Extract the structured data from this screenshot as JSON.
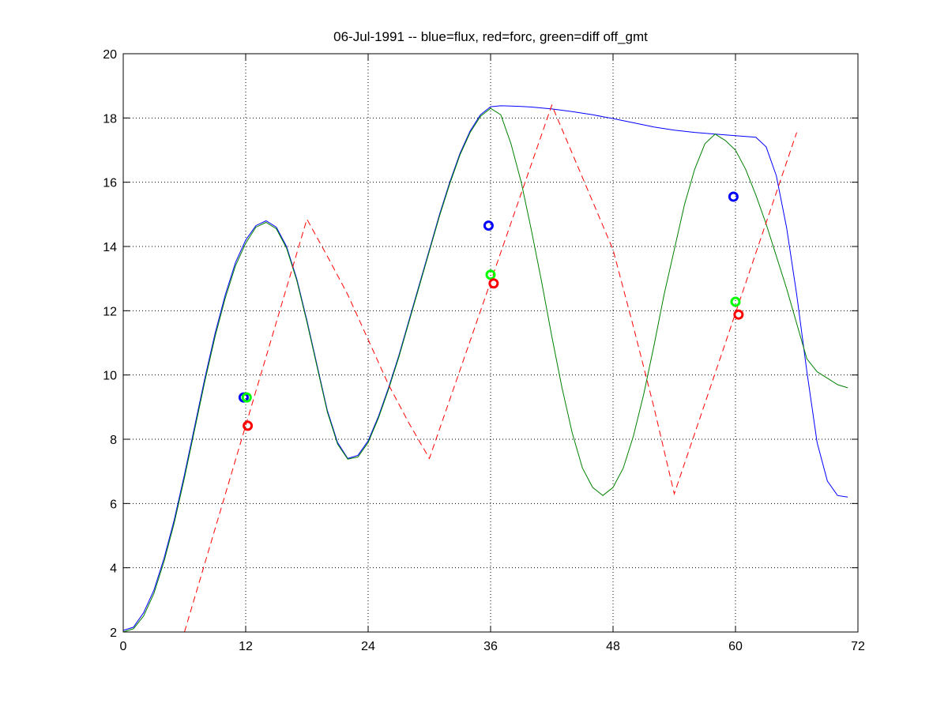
{
  "chart_data": {
    "type": "line",
    "title": "06-Jul-1991 -- blue=flux, red=forc, green=diff off_gmt",
    "xlabel": "",
    "ylabel": "",
    "xlim": [
      0,
      72
    ],
    "ylim": [
      2,
      20
    ],
    "xticks": [
      0,
      12,
      24,
      36,
      48,
      60,
      72
    ],
    "yticks": [
      2,
      4,
      6,
      8,
      10,
      12,
      14,
      16,
      18,
      20
    ],
    "grid": true,
    "grid_style": "dotted",
    "colors": {
      "flux": "#0000ff",
      "forc": "#ff0000",
      "diff": "#008000",
      "diff_marker": "#00ff00"
    },
    "series": [
      {
        "key": "flux",
        "color": "#0000ff",
        "style": "solid",
        "x": [
          0,
          1,
          2,
          3,
          4,
          5,
          6,
          7,
          8,
          9,
          10,
          11,
          12,
          13,
          14,
          15,
          16,
          17,
          18,
          19,
          20,
          21,
          22,
          23,
          24,
          25,
          26,
          27,
          28,
          29,
          30,
          31,
          32,
          33,
          34,
          35,
          36,
          37,
          38,
          39,
          40,
          42,
          44,
          46,
          48,
          50,
          52,
          54,
          56,
          58,
          60,
          62,
          63,
          64,
          65,
          66,
          67,
          68,
          69,
          70,
          71
        ],
        "y": [
          2.05,
          2.15,
          2.6,
          3.3,
          4.3,
          5.5,
          6.9,
          8.4,
          9.9,
          11.3,
          12.5,
          13.5,
          14.2,
          14.65,
          14.8,
          14.6,
          14.0,
          13.0,
          11.7,
          10.3,
          8.9,
          7.9,
          7.4,
          7.5,
          7.95,
          8.7,
          9.6,
          10.6,
          11.7,
          12.8,
          13.9,
          15.0,
          16.0,
          16.9,
          17.6,
          18.1,
          18.35,
          18.38,
          18.37,
          18.36,
          18.34,
          18.28,
          18.2,
          18.1,
          17.98,
          17.85,
          17.72,
          17.62,
          17.55,
          17.5,
          17.45,
          17.4,
          17.1,
          16.2,
          14.6,
          12.5,
          10.1,
          7.9,
          6.7,
          6.25,
          6.2
        ]
      },
      {
        "key": "diff",
        "color": "#008000",
        "style": "solid",
        "x": [
          0,
          1,
          2,
          3,
          4,
          5,
          6,
          7,
          8,
          9,
          10,
          11,
          12,
          13,
          14,
          15,
          16,
          17,
          18,
          19,
          20,
          21,
          22,
          23,
          24,
          25,
          26,
          27,
          28,
          29,
          30,
          31,
          32,
          33,
          34,
          35,
          36,
          37,
          38,
          39,
          40,
          41,
          42,
          43,
          44,
          45,
          46,
          47,
          48,
          49,
          50,
          51,
          52,
          53,
          54,
          55,
          56,
          57,
          58,
          59,
          60,
          61,
          62,
          63,
          64,
          65,
          66,
          67,
          68,
          69,
          70,
          71
        ],
        "y": [
          2.0,
          2.1,
          2.5,
          3.2,
          4.2,
          5.4,
          6.8,
          8.3,
          9.8,
          11.2,
          12.4,
          13.4,
          14.1,
          14.6,
          14.75,
          14.55,
          13.95,
          12.95,
          11.65,
          10.25,
          8.85,
          7.85,
          7.38,
          7.45,
          7.9,
          8.65,
          9.55,
          10.55,
          11.65,
          12.75,
          13.85,
          14.95,
          15.95,
          16.85,
          17.55,
          18.05,
          18.3,
          18.1,
          17.2,
          16.0,
          14.5,
          12.9,
          11.2,
          9.6,
          8.2,
          7.1,
          6.5,
          6.25,
          6.5,
          7.1,
          8.1,
          9.4,
          10.9,
          12.5,
          13.9,
          15.3,
          16.4,
          17.2,
          17.5,
          17.3,
          17.0,
          16.4,
          15.6,
          14.7,
          13.7,
          12.7,
          11.6,
          10.5,
          10.1,
          9.9,
          9.7,
          9.6
        ]
      },
      {
        "key": "forc",
        "color": "#ff0000",
        "style": "dashed",
        "x": [
          6,
          18,
          20,
          22,
          24,
          26,
          28,
          30,
          42,
          44,
          46,
          48,
          50,
          52,
          54,
          66
        ],
        "y": [
          2.0,
          14.85,
          13.7,
          12.5,
          11.1,
          9.7,
          8.5,
          7.4,
          18.4,
          16.9,
          15.4,
          13.9,
          11.5,
          9.0,
          6.3,
          17.55
        ]
      }
    ],
    "markers": [
      {
        "key": "flux",
        "color": "#0000ff",
        "x": 11.8,
        "y": 9.3
      },
      {
        "key": "diff",
        "color": "#00ff00",
        "x": 12.1,
        "y": 9.3
      },
      {
        "key": "forc",
        "color": "#ff0000",
        "x": 12.2,
        "y": 8.42
      },
      {
        "key": "flux",
        "color": "#0000ff",
        "x": 35.8,
        "y": 14.65
      },
      {
        "key": "diff",
        "color": "#00ff00",
        "x": 36.0,
        "y": 13.12
      },
      {
        "key": "forc",
        "color": "#ff0000",
        "x": 36.3,
        "y": 12.85
      },
      {
        "key": "flux",
        "color": "#0000ff",
        "x": 59.8,
        "y": 15.55
      },
      {
        "key": "diff",
        "color": "#00ff00",
        "x": 60.0,
        "y": 12.28
      },
      {
        "key": "forc",
        "color": "#ff0000",
        "x": 60.3,
        "y": 11.88
      }
    ]
  }
}
